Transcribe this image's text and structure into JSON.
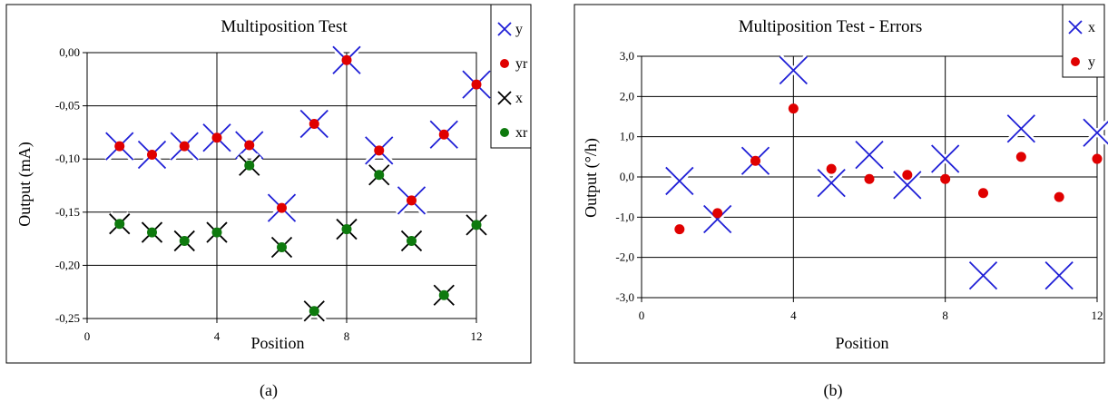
{
  "chart_data": [
    {
      "type": "scatter",
      "title": "Multiposition Test",
      "xlabel": "Position",
      "ylabel": "Output (mA)",
      "caption": "(a)",
      "xlim": [
        0,
        12
      ],
      "ylim": [
        -0.25,
        0.0
      ],
      "xticks": [
        "0",
        "4",
        "8",
        "12"
      ],
      "yticks": [
        "0,00",
        "-0,05",
        "-0,10",
        "-0,15",
        "-0,20",
        "-0,25"
      ],
      "grid": true,
      "legend_position": "right",
      "series": [
        {
          "name": "y",
          "marker": "x-blue",
          "color": "#1f1fd6",
          "x": [
            1,
            2,
            3,
            4,
            5,
            6,
            7,
            8,
            9,
            10,
            11,
            12
          ],
          "y": [
            -0.088,
            -0.096,
            -0.088,
            -0.08,
            -0.087,
            -0.146,
            -0.067,
            -0.007,
            -0.092,
            -0.139,
            -0.077,
            -0.03
          ]
        },
        {
          "name": "yr",
          "marker": "dot-red",
          "color": "#e00000",
          "x": [
            1,
            2,
            3,
            4,
            5,
            6,
            7,
            8,
            9,
            10,
            11,
            12
          ],
          "y": [
            -0.088,
            -0.096,
            -0.088,
            -0.08,
            -0.087,
            -0.146,
            -0.067,
            -0.007,
            -0.092,
            -0.139,
            -0.077,
            -0.03
          ]
        },
        {
          "name": "x",
          "marker": "x-black",
          "color": "#000000",
          "x": [
            1,
            2,
            3,
            4,
            5,
            6,
            7,
            8,
            9,
            10,
            11,
            12
          ],
          "y": [
            -0.161,
            -0.169,
            -0.177,
            -0.169,
            -0.106,
            -0.183,
            -0.243,
            -0.166,
            -0.115,
            -0.177,
            -0.228,
            -0.162
          ]
        },
        {
          "name": "xr",
          "marker": "dot-green",
          "color": "#0e7a0e",
          "x": [
            1,
            2,
            3,
            4,
            5,
            6,
            7,
            8,
            9,
            10,
            11,
            12
          ],
          "y": [
            -0.161,
            -0.169,
            -0.177,
            -0.169,
            -0.106,
            -0.183,
            -0.243,
            -0.166,
            -0.115,
            -0.177,
            -0.228,
            -0.162
          ]
        }
      ]
    },
    {
      "type": "scatter",
      "title": "Multiposition Test - Errors",
      "xlabel": "Position",
      "ylabel": "Output (°/h)",
      "caption": "(b)",
      "xlim": [
        0,
        12
      ],
      "ylim": [
        -3.0,
        3.0
      ],
      "xticks": [
        "0",
        "4",
        "8",
        "12"
      ],
      "yticks": [
        "3,0",
        "2,0",
        "1,0",
        "0,0",
        "-1,0",
        "-2,0",
        "-3,0"
      ],
      "grid": true,
      "legend_position": "top-right",
      "series": [
        {
          "name": "x",
          "marker": "x-blue",
          "color": "#1f1fd6",
          "x": [
            1,
            2,
            3,
            4,
            5,
            6,
            7,
            8,
            9,
            10,
            11,
            12
          ],
          "y": [
            -0.1,
            -1.05,
            0.4,
            2.65,
            -0.15,
            0.55,
            -0.2,
            0.45,
            -2.45,
            1.2,
            -2.45,
            1.1
          ]
        },
        {
          "name": "y",
          "marker": "dot-red",
          "color": "#e00000",
          "x": [
            1,
            2,
            3,
            4,
            5,
            6,
            7,
            8,
            9,
            10,
            11,
            12
          ],
          "y": [
            -1.3,
            -0.9,
            0.4,
            1.7,
            0.2,
            -0.05,
            0.05,
            -0.05,
            -0.4,
            0.5,
            -0.5,
            0.45
          ]
        }
      ]
    }
  ]
}
